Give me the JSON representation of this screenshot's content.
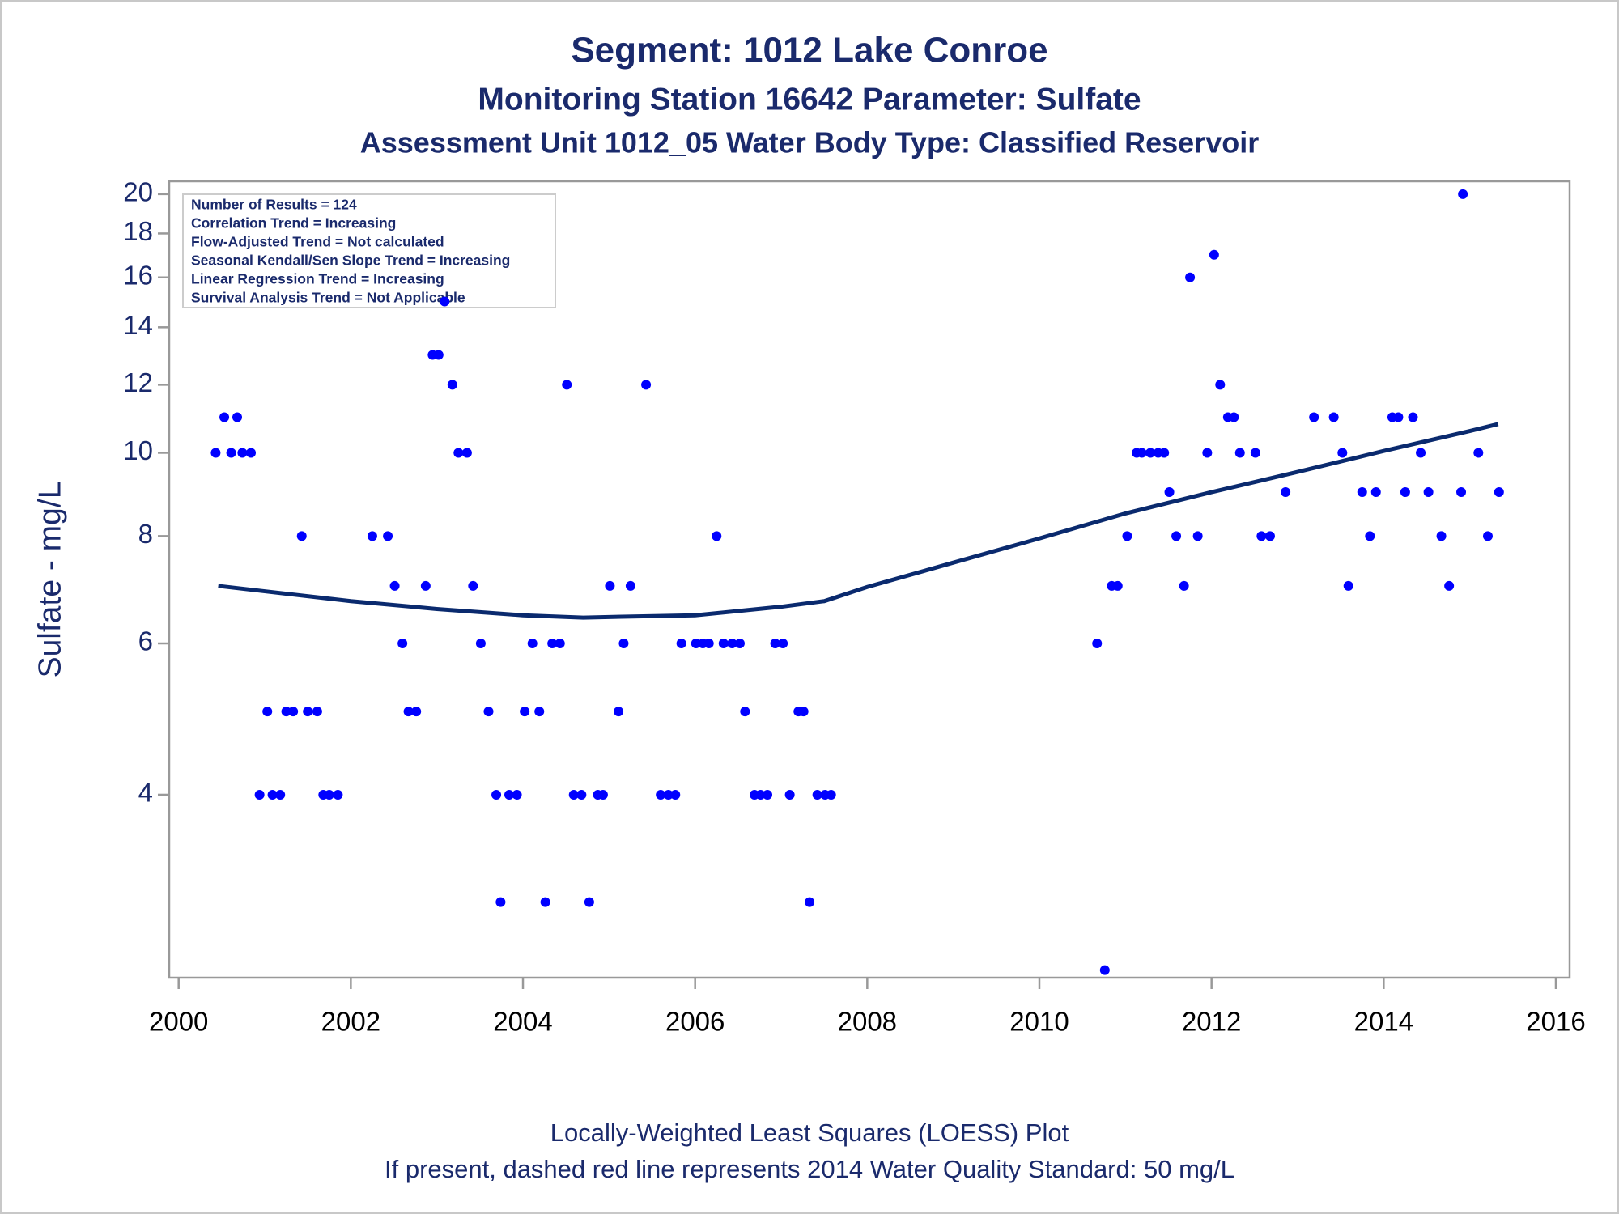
{
  "chart_data": {
    "type": "scatter",
    "title": "Segment: 1012  Lake Conroe",
    "subtitle": "Monitoring Station 16642 Parameter: Sulfate",
    "subtitle2": "Assessment Unit 1012_05   Water Body Type: Classified Reservoir",
    "y_label": "Sulfate - mg/L",
    "stats": [
      "Number of Results = 124",
      "Correlation Trend = Increasing",
      "Flow-Adjusted Trend = Not calculated",
      "Seasonal Kendall/Sen Slope Trend = Increasing",
      "Linear Regression Trend = Increasing",
      "Survival Analysis Trend = Not Applicable"
    ],
    "footnotes": [
      "Locally-Weighted Least Squares (LOESS) Plot",
      "If present, dashed red line represents 2014 Water Quality Standard: 50    mg/L"
    ],
    "log_y": true,
    "xlim": [
      1999.89,
      2016.16
    ],
    "xticks": [
      2000,
      2002,
      2004,
      2006,
      2008,
      2010,
      2012,
      2014,
      2016
    ],
    "ylim": [
      2.45,
      20.7
    ],
    "yticks": [
      4,
      6,
      8,
      10,
      12,
      14,
      16,
      18,
      20
    ],
    "points": {
      "color": "#0000ff",
      "x": [
        2000.43,
        2000.53,
        2000.61,
        2000.68,
        2000.74,
        2000.84,
        2000.94,
        2001.03,
        2001.09,
        2001.18,
        2001.25,
        2001.33,
        2001.43,
        2001.5,
        2001.61,
        2001.68,
        2001.75,
        2001.85,
        2002.25,
        2002.43,
        2002.51,
        2002.6,
        2002.67,
        2002.76,
        2002.87,
        2002.95,
        2003.02,
        2003.09,
        2003.18,
        2003.25,
        2003.35,
        2003.42,
        2003.51,
        2003.6,
        2003.69,
        2003.74,
        2003.84,
        2003.93,
        2004.02,
        2004.11,
        2004.19,
        2004.26,
        2004.34,
        2004.43,
        2004.51,
        2004.59,
        2004.68,
        2004.77,
        2004.87,
        2004.93,
        2005.01,
        2005.11,
        2005.17,
        2005.25,
        2005.43,
        2005.6,
        2005.69,
        2005.77,
        2005.84,
        2006.01,
        2006.09,
        2006.16,
        2006.25,
        2006.33,
        2006.43,
        2006.52,
        2006.58,
        2006.69,
        2006.76,
        2006.84,
        2006.93,
        2007.02,
        2007.1,
        2007.2,
        2007.26,
        2007.33,
        2007.42,
        2007.51,
        2007.58,
        2010.67,
        2010.76,
        2010.84,
        2010.91,
        2011.02,
        2011.13,
        2011.19,
        2011.29,
        2011.38,
        2011.45,
        2011.51,
        2011.59,
        2011.68,
        2011.75,
        2011.84,
        2011.95,
        2012.03,
        2012.1,
        2012.19,
        2012.26,
        2012.33,
        2012.51,
        2012.58,
        2012.68,
        2012.86,
        2013.19,
        2013.42,
        2013.52,
        2013.59,
        2013.75,
        2013.84,
        2013.91,
        2014.1,
        2014.17,
        2014.25,
        2014.34,
        2014.43,
        2014.52,
        2014.67,
        2014.76,
        2014.9,
        2014.92,
        2015.1,
        2015.21,
        2015.34
      ],
      "values": [
        10,
        11,
        10,
        11,
        10,
        10,
        4,
        5,
        4,
        4,
        5,
        5,
        8,
        5,
        5,
        4,
        4,
        4,
        8,
        8,
        7,
        6,
        5,
        5,
        7,
        13,
        13,
        15,
        12,
        10,
        10,
        7,
        6,
        5,
        4,
        3,
        4,
        4,
        5,
        6,
        5,
        3,
        6,
        6,
        12,
        4,
        4,
        3,
        4,
        4,
        7,
        5,
        6,
        7,
        12,
        4,
        4,
        4,
        6,
        6,
        6,
        6,
        8,
        6,
        6,
        6,
        5,
        4,
        4,
        4,
        6,
        6,
        4,
        5,
        5,
        3,
        4,
        4,
        4,
        6,
        2.5,
        7,
        7,
        8,
        10,
        10,
        10,
        10,
        10,
        9,
        8,
        7,
        16,
        8,
        10,
        17,
        12,
        11,
        11,
        10,
        10,
        8,
        8,
        9,
        11,
        11,
        10,
        7,
        9,
        8,
        9,
        11,
        11,
        9,
        11,
        10,
        9,
        8,
        7,
        9,
        20,
        10,
        8,
        9
      ]
    },
    "trend": {
      "color": "#0a2a6e",
      "x": [
        2000.46,
        2001,
        2002,
        2003,
        2004,
        2004.7,
        2005,
        2006,
        2007,
        2007.5,
        2008,
        2009,
        2010,
        2011,
        2012,
        2013,
        2014,
        2015,
        2015.33
      ],
      "values": [
        7.0,
        6.9,
        6.72,
        6.58,
        6.47,
        6.43,
        6.44,
        6.47,
        6.62,
        6.72,
        6.98,
        7.45,
        7.95,
        8.5,
        9.0,
        9.5,
        10.05,
        10.6,
        10.8
      ]
    }
  }
}
